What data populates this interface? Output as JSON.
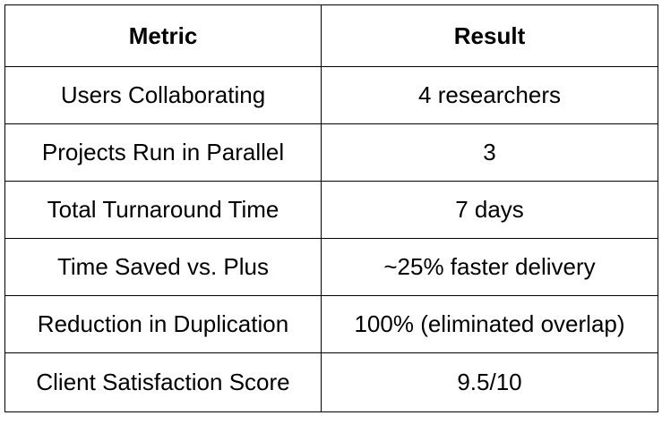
{
  "table": {
    "headers": [
      "Metric",
      "Result"
    ],
    "rows": [
      [
        "Users Collaborating",
        "4 researchers"
      ],
      [
        "Projects Run in Parallel",
        "3"
      ],
      [
        "Total Turnaround Time",
        "7 days"
      ],
      [
        "Time Saved vs. Plus",
        "~25% faster delivery"
      ],
      [
        "Reduction in Duplication",
        "100% (eliminated overlap)"
      ],
      [
        "Client Satisfaction Score",
        "9.5/10"
      ]
    ]
  }
}
